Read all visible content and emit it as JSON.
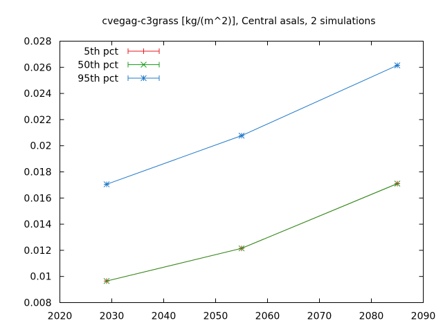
{
  "chart_data": {
    "type": "line",
    "title": "cvegag-c3grass [kg/(m^2)], Central asals, 2 simulations",
    "xlabel": "",
    "ylabel": "",
    "xlim": [
      2020,
      2090
    ],
    "ylim": [
      0.008,
      0.028
    ],
    "x_ticks": [
      "2020",
      "2030",
      "2040",
      "2050",
      "2060",
      "2070",
      "2080",
      "2090"
    ],
    "y_ticks": [
      "0.008",
      "0.01",
      "0.012",
      "0.014",
      "0.016",
      "0.018",
      "0.02",
      "0.022",
      "0.024",
      "0.026",
      "0.028"
    ],
    "grid": false,
    "legend_position": "top-left",
    "x": [
      2029,
      2055,
      2085
    ],
    "series": [
      {
        "name": "5th pct",
        "color": "#e41a1c",
        "marker": "plus",
        "values": [
          0.00965,
          0.01215,
          0.0171
        ]
      },
      {
        "name": "50th pct",
        "color": "#1a9a1a",
        "marker": "cross",
        "values": [
          0.00965,
          0.01215,
          0.0171
        ]
      },
      {
        "name": "95th pct",
        "color": "#1f78c8",
        "marker": "star",
        "values": [
          0.01705,
          0.02077,
          0.02615
        ]
      }
    ]
  }
}
